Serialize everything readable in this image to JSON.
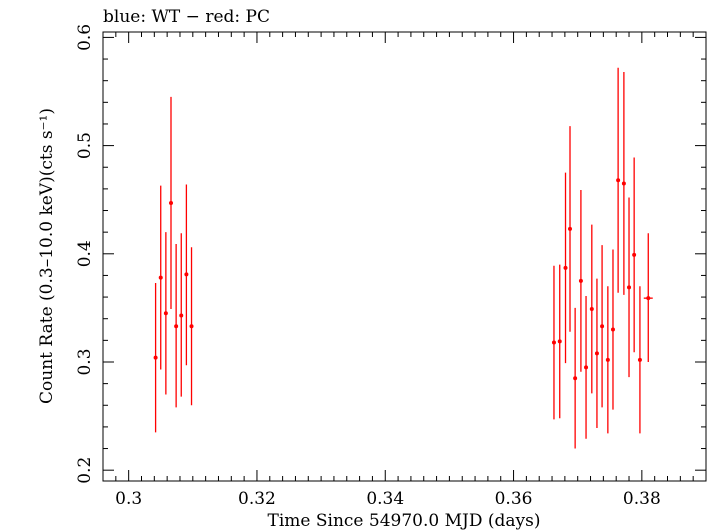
{
  "chart_data": {
    "type": "scatter",
    "title": "blue: WT − red: PC",
    "xlabel": "Time Since 54970.0 MJD (days)",
    "ylabel": "Count Rate (0.3–10.0 keV)(cts s⁻¹)",
    "xlim": [
      0.296,
      0.39
    ],
    "ylim": [
      0.19,
      0.605
    ],
    "xticks": [
      0.3,
      0.32,
      0.34,
      0.36,
      0.38
    ],
    "xtick_labels": [
      "0.3",
      "0.32",
      "0.34",
      "0.36",
      "0.38"
    ],
    "yticks": [
      0.2,
      0.3,
      0.4,
      0.5,
      0.6
    ],
    "ytick_labels": [
      "0.2",
      "0.3",
      "0.4",
      "0.5",
      "0.6"
    ],
    "grid": false,
    "series": [
      {
        "color": "#ff0000",
        "points": [
          {
            "x": 0.3042,
            "y": 0.304,
            "ylo": 0.235,
            "yhi": 0.373
          },
          {
            "x": 0.305,
            "y": 0.378,
            "ylo": 0.293,
            "yhi": 0.463
          },
          {
            "x": 0.3058,
            "y": 0.345,
            "ylo": 0.27,
            "yhi": 0.42
          },
          {
            "x": 0.3066,
            "y": 0.447,
            "ylo": 0.349,
            "yhi": 0.545
          },
          {
            "x": 0.3074,
            "y": 0.333,
            "ylo": 0.258,
            "yhi": 0.409
          },
          {
            "x": 0.3082,
            "y": 0.343,
            "ylo": 0.268,
            "yhi": 0.419
          },
          {
            "x": 0.309,
            "y": 0.381,
            "ylo": 0.297,
            "yhi": 0.464
          },
          {
            "x": 0.3098,
            "y": 0.333,
            "ylo": 0.26,
            "yhi": 0.406
          },
          {
            "x": 0.3663,
            "y": 0.318,
            "ylo": 0.247,
            "yhi": 0.389
          },
          {
            "x": 0.3672,
            "y": 0.319,
            "ylo": 0.248,
            "yhi": 0.39
          },
          {
            "x": 0.3681,
            "y": 0.387,
            "ylo": 0.299,
            "yhi": 0.475
          },
          {
            "x": 0.3688,
            "y": 0.423,
            "ylo": 0.328,
            "yhi": 0.518
          },
          {
            "x": 0.3696,
            "y": 0.285,
            "ylo": 0.22,
            "yhi": 0.35
          },
          {
            "x": 0.3705,
            "y": 0.375,
            "ylo": 0.291,
            "yhi": 0.459
          },
          {
            "x": 0.3713,
            "y": 0.295,
            "ylo": 0.229,
            "yhi": 0.361
          },
          {
            "x": 0.3722,
            "y": 0.349,
            "ylo": 0.271,
            "yhi": 0.427
          },
          {
            "x": 0.373,
            "y": 0.308,
            "ylo": 0.239,
            "yhi": 0.377
          },
          {
            "x": 0.3738,
            "y": 0.333,
            "ylo": 0.258,
            "yhi": 0.408
          },
          {
            "x": 0.3747,
            "y": 0.302,
            "ylo": 0.234,
            "yhi": 0.37
          },
          {
            "x": 0.3755,
            "y": 0.33,
            "ylo": 0.256,
            "yhi": 0.404
          },
          {
            "x": 0.3763,
            "y": 0.468,
            "ylo": 0.364,
            "yhi": 0.572
          },
          {
            "x": 0.3772,
            "y": 0.465,
            "ylo": 0.362,
            "yhi": 0.568
          },
          {
            "x": 0.378,
            "y": 0.369,
            "ylo": 0.286,
            "yhi": 0.452
          },
          {
            "x": 0.3788,
            "y": 0.399,
            "ylo": 0.309,
            "yhi": 0.489
          },
          {
            "x": 0.3797,
            "y": 0.302,
            "ylo": 0.234,
            "yhi": 0.37
          },
          {
            "x": 0.381,
            "y": 0.359,
            "ylo": 0.3,
            "yhi": 0.419,
            "xerr": 0.0007
          }
        ]
      }
    ]
  }
}
